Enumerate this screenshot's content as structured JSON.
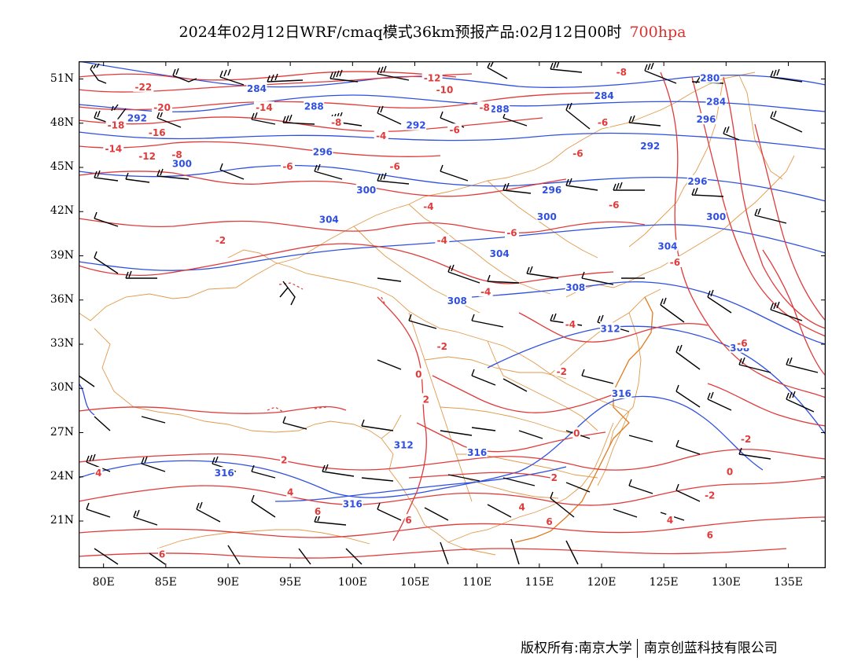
{
  "title": {
    "text": "2024年02月12日WRF/cmaq模式36km预报产品:02月12日00时",
    "level": "700hpa"
  },
  "colors": {
    "height_contour": "#2e4fe0",
    "temp_contour": "#e03a3a",
    "boundary": "#e09a4a",
    "wind_barb": "#000000",
    "level_text": "#e03030"
  },
  "axes": {
    "lat_labels": [
      "51N",
      "48N",
      "45N",
      "42N",
      "39N",
      "36N",
      "33N",
      "30N",
      "27N",
      "24N",
      "21N"
    ],
    "lon_labels": [
      "80E",
      "85E",
      "90E",
      "95E",
      "100E",
      "105E",
      "110E",
      "115E",
      "120E",
      "125E",
      "130E",
      "135E"
    ]
  },
  "height_labels": [
    {
      "text": "280",
      "lon": 128.7,
      "lat": 51.1
    },
    {
      "text": "284",
      "lon": 92.3,
      "lat": 50.4
    },
    {
      "text": "284",
      "lon": 120.2,
      "lat": 49.9
    },
    {
      "text": "284",
      "lon": 129.2,
      "lat": 49.5
    },
    {
      "text": "288",
      "lon": 96.9,
      "lat": 49.2
    },
    {
      "text": "288",
      "lon": 111.8,
      "lat": 49.0
    },
    {
      "text": "292",
      "lon": 82.7,
      "lat": 48.4
    },
    {
      "text": "292",
      "lon": 105.1,
      "lat": 47.9
    },
    {
      "text": "296",
      "lon": 128.4,
      "lat": 48.3
    },
    {
      "text": "296",
      "lon": 97.6,
      "lat": 46.1
    },
    {
      "text": "292",
      "lon": 123.9,
      "lat": 46.5
    },
    {
      "text": "300",
      "lon": 86.3,
      "lat": 45.3
    },
    {
      "text": "300",
      "lon": 101.1,
      "lat": 43.5
    },
    {
      "text": "296",
      "lon": 116.0,
      "lat": 43.5
    },
    {
      "text": "296",
      "lon": 127.7,
      "lat": 44.1
    },
    {
      "text": "304",
      "lon": 98.1,
      "lat": 41.5
    },
    {
      "text": "300",
      "lon": 115.6,
      "lat": 41.7
    },
    {
      "text": "300",
      "lon": 129.2,
      "lat": 41.7
    },
    {
      "text": "304",
      "lon": 111.8,
      "lat": 39.2
    },
    {
      "text": "304",
      "lon": 125.3,
      "lat": 39.7
    },
    {
      "text": "308",
      "lon": 117.9,
      "lat": 36.9
    },
    {
      "text": "308",
      "lon": 108.4,
      "lat": 36.0
    },
    {
      "text": "312",
      "lon": 120.7,
      "lat": 34.1
    },
    {
      "text": "308",
      "lon": 131.1,
      "lat": 32.8
    },
    {
      "text": "316",
      "lon": 121.6,
      "lat": 29.7
    },
    {
      "text": "312",
      "lon": 104.1,
      "lat": 26.2
    },
    {
      "text": "316",
      "lon": 110.0,
      "lat": 25.7
    },
    {
      "text": "316",
      "lon": 89.7,
      "lat": 24.3
    },
    {
      "text": "316",
      "lon": 100.0,
      "lat": 22.2
    }
  ],
  "temp_labels": [
    {
      "text": "-22",
      "lon": 83.2,
      "lat": 50.5
    },
    {
      "text": "-20",
      "lon": 84.7,
      "lat": 49.1
    },
    {
      "text": "-18",
      "lon": 81.0,
      "lat": 47.9
    },
    {
      "text": "-16",
      "lon": 84.3,
      "lat": 47.4
    },
    {
      "text": "-14",
      "lon": 80.8,
      "lat": 46.3
    },
    {
      "text": "-12",
      "lon": 83.5,
      "lat": 45.8
    },
    {
      "text": "-8",
      "lon": 85.9,
      "lat": 45.9
    },
    {
      "text": "-14",
      "lon": 92.9,
      "lat": 49.1
    },
    {
      "text": "-12",
      "lon": 106.4,
      "lat": 51.1
    },
    {
      "text": "-10",
      "lon": 107.4,
      "lat": 50.3
    },
    {
      "text": "-8",
      "lon": 110.6,
      "lat": 49.1
    },
    {
      "text": "-8",
      "lon": 121.6,
      "lat": 51.5
    },
    {
      "text": "-8",
      "lon": 98.7,
      "lat": 48.1
    },
    {
      "text": "-6",
      "lon": 108.2,
      "lat": 47.6
    },
    {
      "text": "-6",
      "lon": 120.1,
      "lat": 48.1
    },
    {
      "text": "-4",
      "lon": 102.3,
      "lat": 47.2
    },
    {
      "text": "-6",
      "lon": 94.8,
      "lat": 45.1
    },
    {
      "text": "-6",
      "lon": 103.4,
      "lat": 45.1
    },
    {
      "text": "-6",
      "lon": 118.1,
      "lat": 46.0
    },
    {
      "text": "-4",
      "lon": 106.1,
      "lat": 42.4
    },
    {
      "text": "-6",
      "lon": 121.0,
      "lat": 42.5
    },
    {
      "text": "-6",
      "lon": 112.8,
      "lat": 40.6
    },
    {
      "text": "-4",
      "lon": 107.2,
      "lat": 40.1
    },
    {
      "text": "-2",
      "lon": 89.4,
      "lat": 40.1
    },
    {
      "text": "-6",
      "lon": 125.9,
      "lat": 38.6
    },
    {
      "text": "-4",
      "lon": 110.7,
      "lat": 36.6
    },
    {
      "text": "-4",
      "lon": 117.5,
      "lat": 34.4
    },
    {
      "text": "-6",
      "lon": 131.3,
      "lat": 33.1
    },
    {
      "text": "-2",
      "lon": 107.2,
      "lat": 32.9
    },
    {
      "text": "0",
      "lon": 105.3,
      "lat": 31.0
    },
    {
      "text": "-2",
      "lon": 116.8,
      "lat": 31.2
    },
    {
      "text": "2",
      "lon": 105.9,
      "lat": 29.3
    },
    {
      "text": "0",
      "lon": 118.0,
      "lat": 27.0
    },
    {
      "text": "-2",
      "lon": 131.6,
      "lat": 26.6
    },
    {
      "text": "2",
      "lon": 94.5,
      "lat": 25.2
    },
    {
      "text": "0",
      "lon": 130.3,
      "lat": 24.4
    },
    {
      "text": "2",
      "lon": 116.2,
      "lat": 24.0
    },
    {
      "text": "4",
      "lon": 95.0,
      "lat": 23.0
    },
    {
      "text": "-2",
      "lon": 128.7,
      "lat": 22.8
    },
    {
      "text": "4",
      "lon": 79.6,
      "lat": 24.3
    },
    {
      "text": "6",
      "lon": 97.2,
      "lat": 21.7
    },
    {
      "text": "6",
      "lon": 104.5,
      "lat": 21.1
    },
    {
      "text": "4",
      "lon": 113.6,
      "lat": 22.0
    },
    {
      "text": "6",
      "lon": 115.8,
      "lat": 21.0
    },
    {
      "text": "4",
      "lon": 125.5,
      "lat": 21.1
    },
    {
      "text": "6",
      "lon": 128.7,
      "lat": 20.1
    },
    {
      "text": "6",
      "lon": 84.7,
      "lat": 18.8
    }
  ],
  "footer": {
    "left": "版权所有:南京大学",
    "right": "南京创蓝科技有限公司"
  }
}
